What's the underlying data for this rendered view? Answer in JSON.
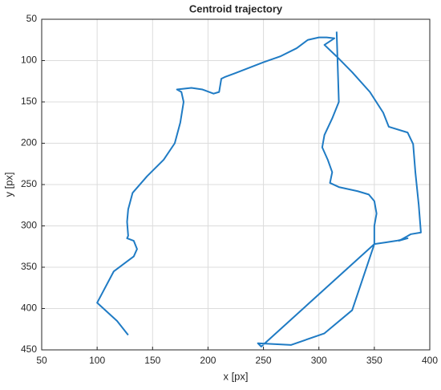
{
  "chart_data": {
    "type": "line",
    "title": "Centroid trajectory",
    "x_label": "x [px]",
    "y_label": "y [px]",
    "xlim": [
      50,
      400
    ],
    "ylim": [
      50,
      450
    ],
    "y_reversed": true,
    "grid": true,
    "xticks": [
      50,
      100,
      150,
      200,
      250,
      300,
      350,
      400
    ],
    "yticks": [
      50,
      100,
      150,
      200,
      250,
      300,
      350,
      400,
      450
    ],
    "series": [
      {
        "color": "#1f7bc4",
        "x": [
          128,
          118,
          100,
          115,
          125,
          133,
          136,
          133,
          127,
          128,
          127,
          128,
          132,
          145,
          160,
          170,
          175,
          178,
          176,
          172,
          185,
          195,
          205,
          210,
          212,
          215,
          225,
          250,
          265,
          280,
          290,
          300,
          307,
          314,
          305,
          316,
          330,
          346,
          358,
          363,
          380,
          385,
          387,
          390,
          392,
          383,
          375,
          372,
          380,
          370,
          360,
          350,
          248,
          245,
          275,
          305,
          330,
          350,
          350,
          352,
          350,
          345,
          335,
          318,
          310,
          312,
          308,
          303,
          305,
          312,
          318,
          316
        ],
        "values": [
          432,
          415,
          393,
          355,
          345,
          337,
          328,
          318,
          315,
          312,
          295,
          280,
          260,
          240,
          220,
          200,
          175,
          150,
          138,
          135,
          133,
          135,
          140,
          138,
          122,
          120,
          115,
          102,
          95,
          85,
          75,
          72,
          72,
          73,
          81,
          95,
          114,
          138,
          163,
          180,
          187,
          201,
          235,
          274,
          308,
          310,
          316,
          318,
          315,
          318,
          320,
          322,
          446,
          442,
          444,
          430,
          402,
          322,
          300,
          285,
          270,
          262,
          258,
          253,
          248,
          235,
          220,
          205,
          190,
          170,
          150,
          65
        ]
      }
    ]
  }
}
